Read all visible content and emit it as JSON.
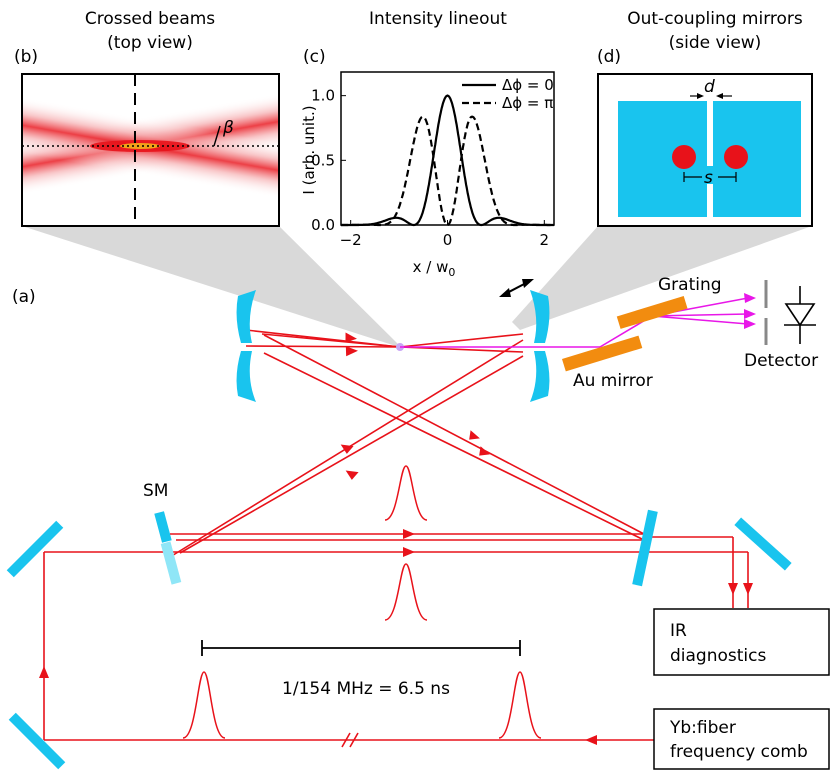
{
  "panels": {
    "b": {
      "tag": "(b)",
      "title_line1": "Crossed beams",
      "title_line2": "(top view)",
      "angle_label": "β"
    },
    "c": {
      "tag": "(c)",
      "title": "Intensity lineout",
      "ylabel": "I (arb. unit.)",
      "xlabel_main": "x / w",
      "xlabel_sub": "0",
      "yticks": [
        "0.0",
        "0.5",
        "1.0"
      ],
      "xticks": [
        "−2",
        "0",
        "2"
      ],
      "legend": [
        "Δϕ = 0",
        "Δϕ = π"
      ]
    },
    "d": {
      "tag": "(d)",
      "title_line1": "Out-coupling mirrors",
      "title_line2": "(side view)",
      "gap_label": "d",
      "spacing_label": "s"
    },
    "a": {
      "tag": "(a)"
    }
  },
  "labels": {
    "grating": "Grating",
    "au_mirror": "Au mirror",
    "detector": "Detector",
    "sm": "SM",
    "ir_line1": "IR",
    "ir_line2": "diagnostics",
    "comb_line1": "Yb:fiber",
    "comb_line2": "frequency comb",
    "spacing": "1/154 MHz = 6.5 ns"
  },
  "chart_data": {
    "type": "line",
    "title": "Intensity lineout",
    "xlabel": "x / w0",
    "ylabel": "I (arb. unit.)",
    "xlim": [
      -2.2,
      2.2
    ],
    "ylim": [
      0,
      1.1
    ],
    "series": [
      {
        "name": "Δϕ = 0",
        "style": "solid",
        "formula": "cos^2(2.25 x) * exp(-2 x^2)"
      },
      {
        "name": "Δϕ = π",
        "style": "dashed",
        "formula": "sin^2(2.25 x) * exp(-2 x^2) / 0.59"
      }
    ]
  },
  "colors": {
    "beam": "#e8121a",
    "mirror": "#19c4ee",
    "mirror_faded": "#8fe6f7",
    "grating": "#f28c0f",
    "xuv": "#e817e8",
    "gray_cone": "#d4d4d4"
  }
}
